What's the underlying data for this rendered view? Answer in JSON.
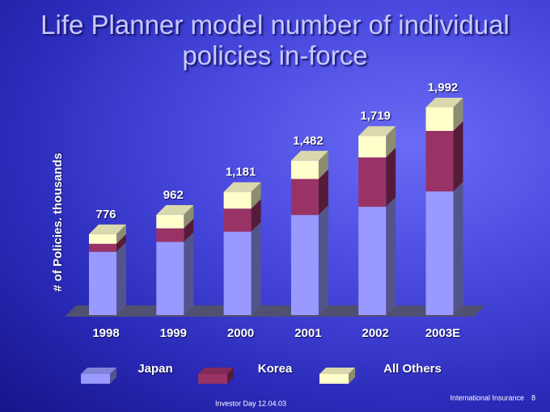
{
  "chart_data": {
    "type": "stacked-bar-3d",
    "title": "Life Planner model number of individual policies in-force",
    "y_label": "# of Policies. thousands",
    "categories": [
      "1998",
      "1999",
      "2000",
      "2001",
      "2002",
      "2003E"
    ],
    "series": [
      {
        "name": "Japan",
        "color": "#9999ff",
        "values": [
          607,
          702,
          800,
          960,
          1039,
          1186
        ]
      },
      {
        "name": "Korea",
        "color": "#993366",
        "values": [
          77,
          130,
          221,
          346,
          474,
          581
        ]
      },
      {
        "name": "All Others",
        "color": "#ffffcc",
        "values": [
          92,
          130,
          160,
          176,
          206,
          225
        ]
      }
    ],
    "totals": [
      776,
      962,
      1181,
      1482,
      1719,
      1992
    ],
    "total_labels": [
      "776",
      "962",
      "1,181",
      "1,482",
      "1,719",
      "1,992"
    ]
  },
  "footer": {
    "left": "Investor Day 12.04.03",
    "right": "International Insurance",
    "page": "8"
  }
}
